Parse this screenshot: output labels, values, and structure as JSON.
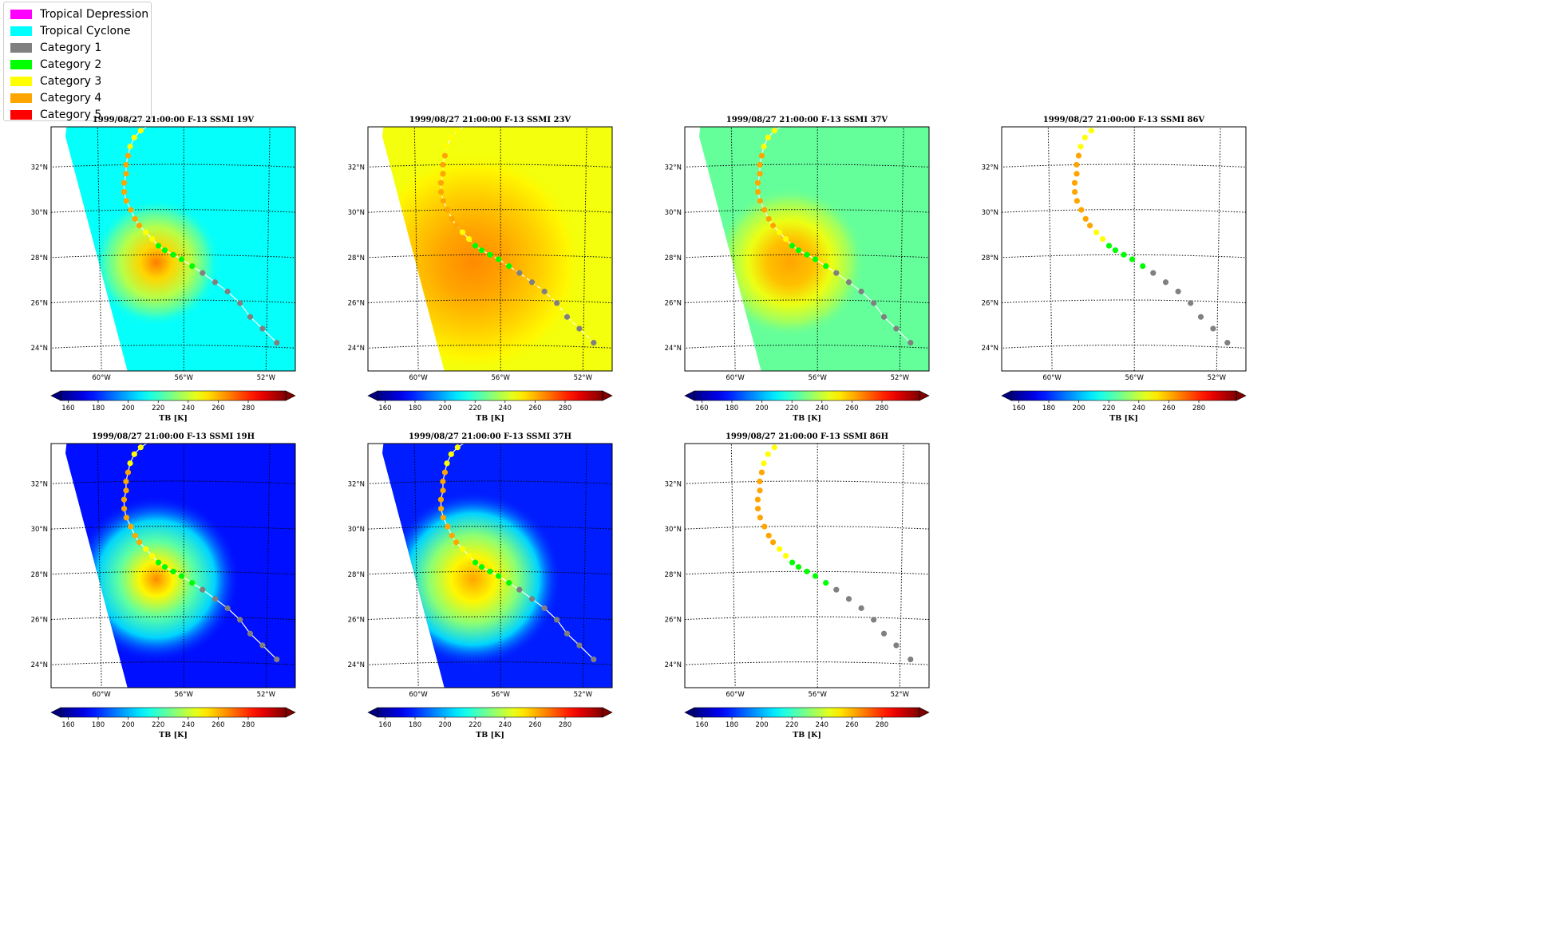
{
  "legend": {
    "items": [
      {
        "label": "Tropical Depression",
        "color": "#ff00ff"
      },
      {
        "label": "Tropical Cyclone",
        "color": "#00ffff"
      },
      {
        "label": "Category 1",
        "color": "#808080"
      },
      {
        "label": "Category 2",
        "color": "#00ff00"
      },
      {
        "label": "Category 3",
        "color": "#ffff00"
      },
      {
        "label": "Category 4",
        "color": "#ffa500"
      },
      {
        "label": "Category 5",
        "color": "#ff0000"
      }
    ]
  },
  "colorbar": {
    "ticks": [
      "160",
      "180",
      "200",
      "220",
      "240",
      "260",
      "280"
    ],
    "label": "TB [K]",
    "range": [
      155,
      305
    ],
    "colormap": "jet",
    "extend": "both"
  },
  "map_axes": {
    "lat_labels": [
      "32°N",
      "30°N",
      "28°N",
      "26°N",
      "24°N"
    ],
    "lon_labels": [
      "60°W",
      "56°W",
      "52°W"
    ]
  },
  "panels": [
    {
      "title": "1999/08/27 21:00:00  F-13 SSMI 19V",
      "style": "v19"
    },
    {
      "title": "1999/08/27 21:00:00  F-13 SSMI 23V",
      "style": "v23"
    },
    {
      "title": "1999/08/27 21:00:00  F-13 SSMI 37V",
      "style": "v37"
    },
    {
      "title": "1999/08/27 21:00:00  F-13 SSMI 86V",
      "style": "empty"
    },
    {
      "title": "1999/08/27 21:00:00  F-13 SSMI 19H",
      "style": "h19"
    },
    {
      "title": "1999/08/27 21:00:00  F-13 SSMI 37H",
      "style": "h37"
    },
    {
      "title": "1999/08/27 21:00:00  F-13 SSMI 86H",
      "style": "empty"
    }
  ],
  "chart_data": {
    "type": "scatter",
    "description_units": "track points in degrees (lon negative = W)",
    "track": [
      {
        "lon": -51.5,
        "lat": 24.2,
        "cat": "Category 1"
      },
      {
        "lon": -52.2,
        "lat": 24.8,
        "cat": "Category 1"
      },
      {
        "lon": -52.8,
        "lat": 25.3,
        "cat": "Category 1"
      },
      {
        "lon": -53.3,
        "lat": 25.9,
        "cat": "Category 1"
      },
      {
        "lon": -53.9,
        "lat": 26.4,
        "cat": "Category 1"
      },
      {
        "lon": -54.5,
        "lat": 26.8,
        "cat": "Category 1"
      },
      {
        "lon": -55.1,
        "lat": 27.2,
        "cat": "Category 1"
      },
      {
        "lon": -55.6,
        "lat": 27.5,
        "cat": "Category 2"
      },
      {
        "lon": -56.1,
        "lat": 27.8,
        "cat": "Category 2"
      },
      {
        "lon": -56.5,
        "lat": 28.0,
        "cat": "Category 2"
      },
      {
        "lon": -56.9,
        "lat": 28.2,
        "cat": "Category 2"
      },
      {
        "lon": -57.2,
        "lat": 28.4,
        "cat": "Category 2"
      },
      {
        "lon": -57.5,
        "lat": 28.7,
        "cat": "Category 3"
      },
      {
        "lon": -57.8,
        "lat": 29.0,
        "cat": "Category 3"
      },
      {
        "lon": -58.1,
        "lat": 29.3,
        "cat": "Category 4"
      },
      {
        "lon": -58.3,
        "lat": 29.6,
        "cat": "Category 4"
      },
      {
        "lon": -58.5,
        "lat": 30.0,
        "cat": "Category 4"
      },
      {
        "lon": -58.7,
        "lat": 30.4,
        "cat": "Category 4"
      },
      {
        "lon": -58.8,
        "lat": 30.8,
        "cat": "Category 4"
      },
      {
        "lon": -58.8,
        "lat": 31.2,
        "cat": "Category 4"
      },
      {
        "lon": -58.7,
        "lat": 31.6,
        "cat": "Category 4"
      },
      {
        "lon": -58.7,
        "lat": 32.0,
        "cat": "Category 4"
      },
      {
        "lon": -58.6,
        "lat": 32.4,
        "cat": "Category 4"
      },
      {
        "lon": -58.5,
        "lat": 32.8,
        "cat": "Category 3"
      },
      {
        "lon": -58.3,
        "lat": 33.2,
        "cat": "Category 3"
      },
      {
        "lon": -58.0,
        "lat": 33.5,
        "cat": "Category 3"
      },
      {
        "lon": -57.5,
        "lat": 33.8,
        "cat": "Category 2"
      }
    ],
    "map_extent": {
      "lon": [
        -62.3,
        -50.7
      ],
      "lat": [
        23.0,
        33.8
      ]
    },
    "storm_center": {
      "lon": -57.0,
      "lat": 27.8
    }
  }
}
